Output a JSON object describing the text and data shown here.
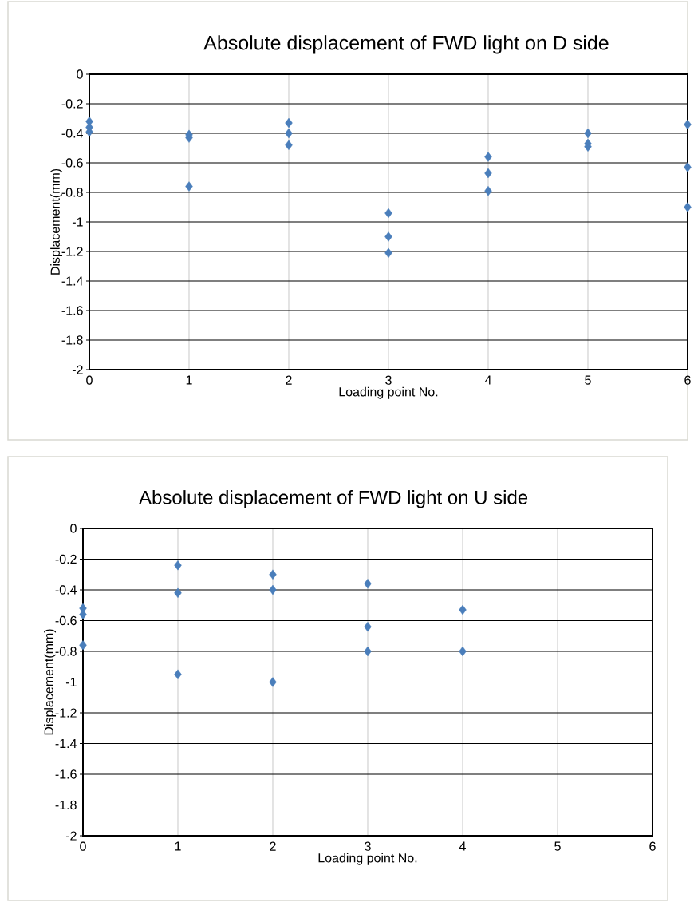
{
  "chart_data": [
    {
      "type": "scatter",
      "title": "Absolute displacement of FWD light on D side",
      "xlabel": "Loading point No.",
      "ylabel": "Displacement(mm)",
      "x": [
        0,
        0,
        0,
        1,
        1,
        1,
        2,
        2,
        2,
        3,
        3,
        3,
        4,
        4,
        4,
        5,
        5,
        5,
        6,
        6,
        6
      ],
      "values": [
        -0.32,
        -0.36,
        -0.39,
        -0.41,
        -0.43,
        -0.76,
        -0.33,
        -0.4,
        -0.48,
        -0.94,
        -1.1,
        -1.21,
        -0.56,
        -0.67,
        -0.79,
        -0.4,
        -0.47,
        -0.49,
        -0.34,
        -0.63,
        -0.9
      ],
      "color": "#4a7ebb",
      "marker": "diamond",
      "grid": true,
      "xlim": [
        0,
        6
      ],
      "xticks": [
        0,
        1,
        2,
        3,
        4,
        5,
        6
      ],
      "ylim": [
        -2,
        0
      ],
      "yticks": [
        -2,
        -1.8,
        -1.6,
        -1.4,
        -1.2,
        -1,
        -0.8,
        -0.6,
        -0.4,
        -0.2,
        0
      ]
    },
    {
      "type": "scatter",
      "title": "Absolute displacement of FWD light on U side",
      "xlabel": "Loading point No.",
      "ylabel": "Displacement(mm)",
      "x": [
        0,
        0,
        0,
        1,
        1,
        1,
        2,
        2,
        2,
        3,
        3,
        3,
        4,
        4
      ],
      "values": [
        -0.52,
        -0.56,
        -0.76,
        -0.24,
        -0.42,
        -0.95,
        -0.3,
        -0.4,
        -1.0,
        -0.36,
        -0.64,
        -0.8,
        -0.53,
        -0.8
      ],
      "color": "#4a7ebb",
      "marker": "diamond",
      "grid": true,
      "xlim": [
        0,
        6
      ],
      "xticks": [
        0,
        1,
        2,
        3,
        4,
        5,
        6
      ],
      "ylim": [
        -2,
        0
      ],
      "yticks": [
        -2,
        -1.8,
        -1.6,
        -1.4,
        -1.2,
        -1,
        -0.8,
        -0.6,
        -0.4,
        -0.2,
        0
      ]
    }
  ]
}
